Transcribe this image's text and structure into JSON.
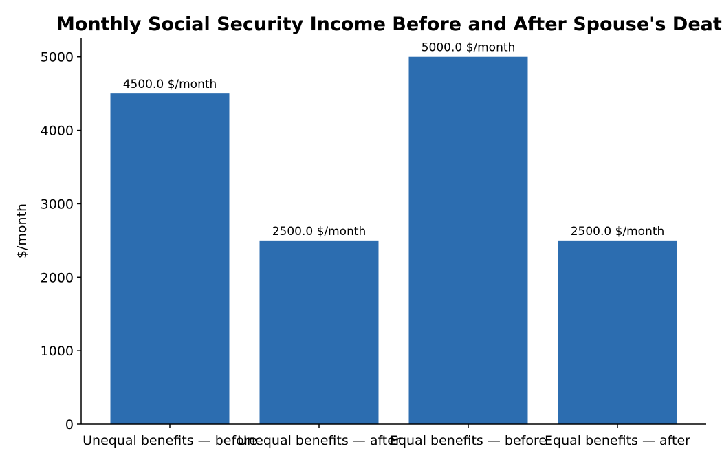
{
  "chart_data": {
    "type": "bar",
    "title": "Monthly Social Security Income Before and After Spouse's Death",
    "xlabel": "",
    "ylabel": "$/month",
    "categories": [
      "Unequal benefits — before",
      "Unequal benefits — after",
      "Equal benefits — before",
      "Equal benefits — after"
    ],
    "values": [
      4500.0,
      2500.0,
      5000.0,
      2500.0
    ],
    "data_labels": [
      "4500.0 $/month",
      "2500.0 $/month",
      "5000.0 $/month",
      "2500.0 $/month"
    ],
    "ylim": [
      0,
      5250
    ],
    "yticks": [
      0,
      1000,
      2000,
      3000,
      4000,
      5000
    ],
    "bar_color": "#2c6db0",
    "grid": false,
    "legend": "none"
  }
}
